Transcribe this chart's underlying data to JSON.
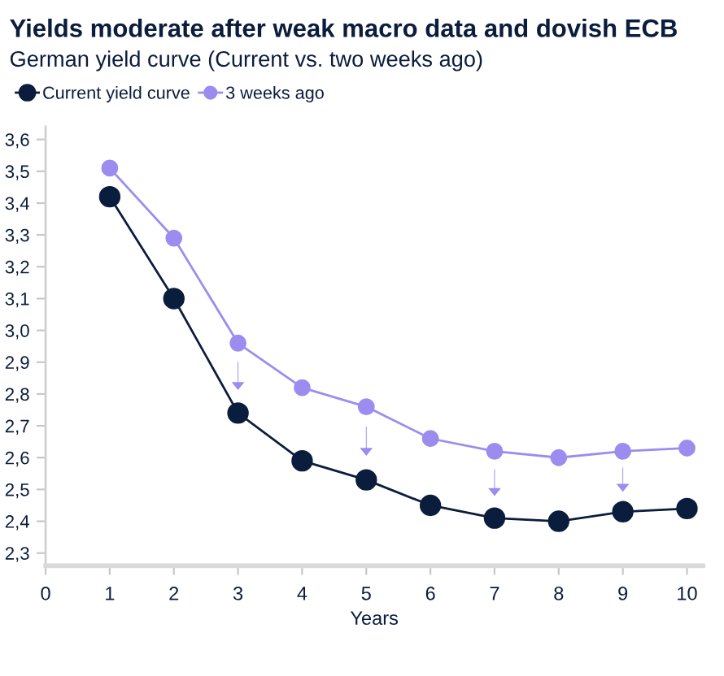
{
  "chart_data": {
    "type": "line",
    "title": "Yields moderate after weak macro data and dovish ECB",
    "subtitle": "German yield curve (Current vs. two weeks ago)",
    "xlabel": "Years",
    "x": [
      1,
      2,
      3,
      4,
      5,
      6,
      7,
      8,
      9,
      10
    ],
    "series": [
      {
        "name": "Current yield curve",
        "color": "#0b1d3d",
        "values": [
          3.42,
          3.1,
          2.74,
          2.59,
          2.53,
          2.45,
          2.41,
          2.4,
          2.43,
          2.44
        ]
      },
      {
        "name": "3 weeks ago",
        "color": "#9c8cf0",
        "values": [
          3.51,
          3.29,
          2.96,
          2.82,
          2.76,
          2.66,
          2.62,
          2.6,
          2.62,
          2.63
        ]
      }
    ],
    "xlim": [
      0,
      10.25
    ],
    "xticks": [
      0,
      1,
      2,
      3,
      4,
      5,
      6,
      7,
      8,
      9,
      10
    ],
    "ylim": [
      2.26,
      3.64
    ],
    "yticks": [
      {
        "value": 2.3,
        "label": "2,3"
      },
      {
        "value": 2.4,
        "label": "2,4"
      },
      {
        "value": 2.5,
        "label": "2,5"
      },
      {
        "value": 2.6,
        "label": "2,6"
      },
      {
        "value": 2.7,
        "label": "2,7"
      },
      {
        "value": 2.8,
        "label": "2,8"
      },
      {
        "value": 2.9,
        "label": "2,9"
      },
      {
        "value": 3.0,
        "label": "3,0"
      },
      {
        "value": 3.1,
        "label": "3,1"
      },
      {
        "value": 3.2,
        "label": "3,2"
      },
      {
        "value": 3.3,
        "label": "3,3"
      },
      {
        "value": 3.4,
        "label": "3,4"
      },
      {
        "value": 3.5,
        "label": "3,5"
      },
      {
        "value": 3.6,
        "label": "3,6"
      }
    ],
    "legend": "top left",
    "marker": "circle",
    "line_style": "solid",
    "grid": false
  }
}
